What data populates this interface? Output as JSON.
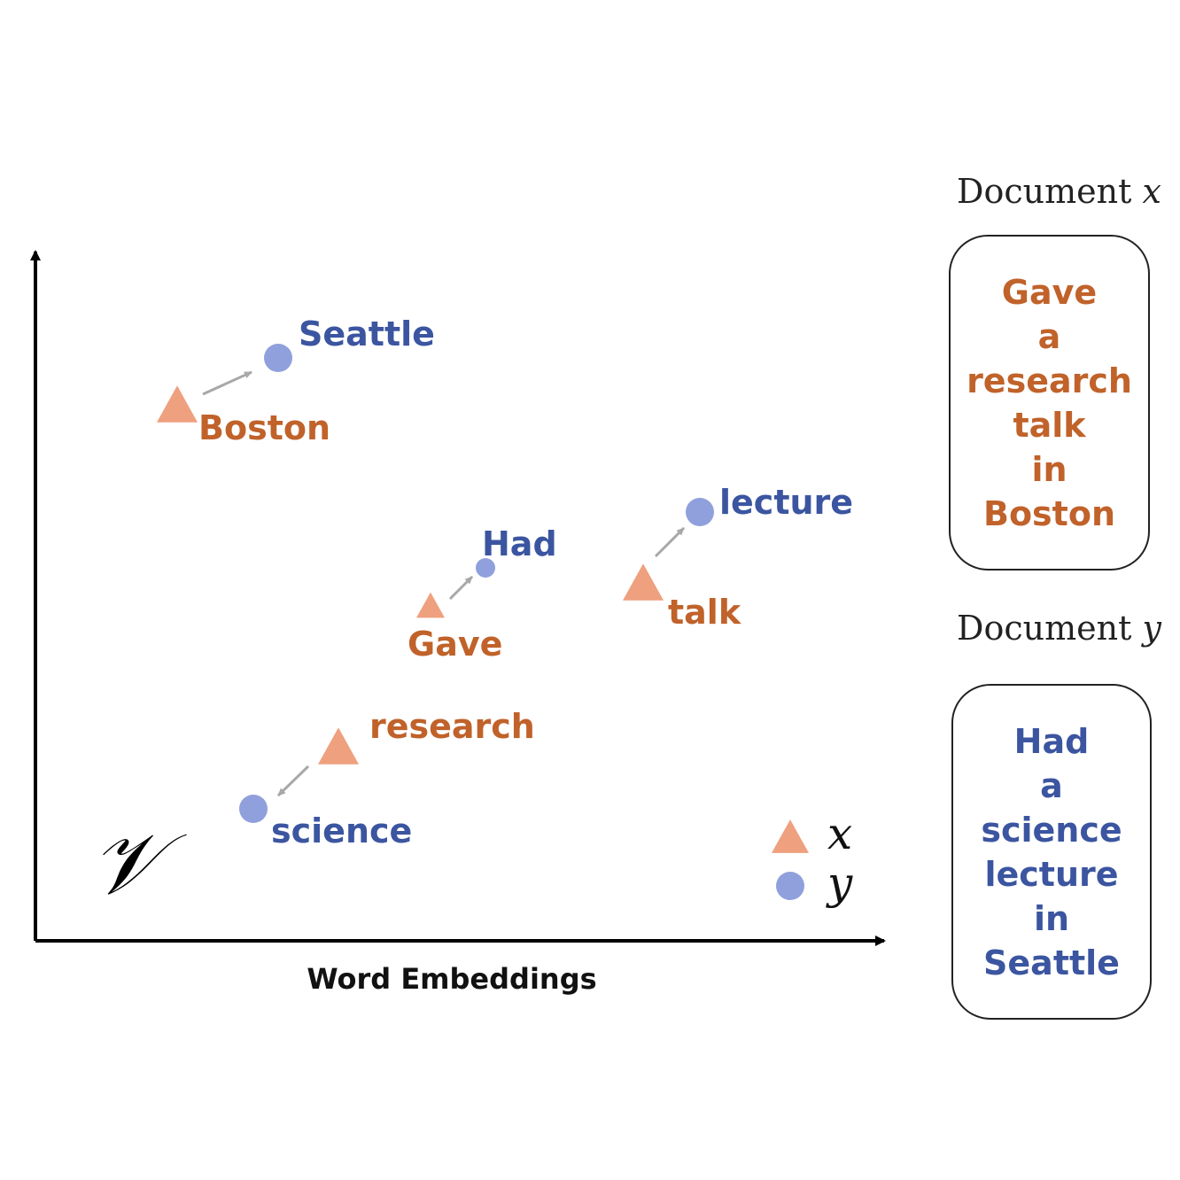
{
  "colors": {
    "x_word": "#c0622a",
    "y_word": "#3b55a0",
    "x_marker": "#efa07e",
    "y_marker": "#8fa0dc",
    "arrow": "#a8a8a8",
    "axis": "#000000"
  },
  "axis": {
    "space_symbol": "𝒱",
    "xlabel": "Word Embeddings"
  },
  "legend": [
    {
      "marker": "triangle",
      "label": "x"
    },
    {
      "marker": "circle",
      "label": "y"
    }
  ],
  "words": [
    {
      "id": "boston",
      "text": "Boston",
      "doc": "x"
    },
    {
      "id": "seattle",
      "text": "Seattle",
      "doc": "y"
    },
    {
      "id": "gave",
      "text": "Gave",
      "doc": "x"
    },
    {
      "id": "had",
      "text": "Had",
      "doc": "y"
    },
    {
      "id": "talk",
      "text": "talk",
      "doc": "x"
    },
    {
      "id": "lecture",
      "text": "lecture",
      "doc": "y"
    },
    {
      "id": "research",
      "text": "research",
      "doc": "x"
    },
    {
      "id": "science",
      "text": "science",
      "doc": "y"
    }
  ],
  "pairs": [
    {
      "from": "boston",
      "to": "seattle"
    },
    {
      "from": "gave",
      "to": "had"
    },
    {
      "from": "talk",
      "to": "lecture"
    },
    {
      "from": "research",
      "to": "science"
    }
  ],
  "documents": {
    "x": {
      "label": "Document",
      "var": "x",
      "words": [
        "Gave",
        "a",
        "research",
        "talk",
        "in",
        "Boston"
      ]
    },
    "y": {
      "label": "Document",
      "var": "y",
      "words": [
        "Had",
        "a",
        "science",
        "lecture",
        "in",
        "Seattle"
      ]
    }
  }
}
